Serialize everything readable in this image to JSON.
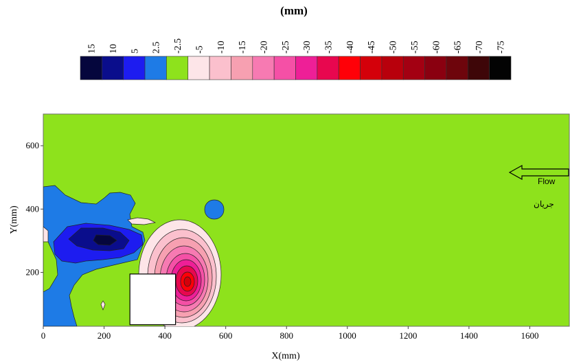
{
  "chart_data": {
    "type": "heatmap",
    "title": "(mm)",
    "xlabel": "X(mm)",
    "ylabel": "Y(mm)",
    "xlim": [
      0,
      1730
    ],
    "ylim": [
      30,
      700
    ],
    "xticks": [
      "0",
      "200",
      "400",
      "600",
      "800",
      "1000",
      "1200",
      "1400",
      "1600"
    ],
    "yticks": [
      "200",
      "400",
      "600"
    ],
    "colorbar": {
      "labels": [
        "15",
        "10",
        "5",
        "2.5",
        "-2.5",
        "-5",
        "-10",
        "-15",
        "-20",
        "-25",
        "-30",
        "-35",
        "-40",
        "-45",
        "-50",
        "-55",
        "-60",
        "-65",
        "-70",
        "-75"
      ],
      "colors": [
        "#05063d",
        "#0a0d8c",
        "#1d1cf0",
        "#1e7be6",
        "#8ee21c",
        "#fde5e8",
        "#fbc0cd",
        "#f7a0b1",
        "#f77ab2",
        "#f550a6",
        "#ee1f97",
        "#e8074f",
        "#ff0008",
        "#d4000a",
        "#b8000c",
        "#a30012",
        "#8a0010",
        "#6e050c",
        "#3e0608",
        "#030303"
      ]
    },
    "background_level": "-2.5",
    "obstacle": {
      "x": [
        285,
        435
      ],
      "y": [
        35,
        195
      ]
    },
    "annotations": [
      "Flow",
      "جريان"
    ]
  }
}
